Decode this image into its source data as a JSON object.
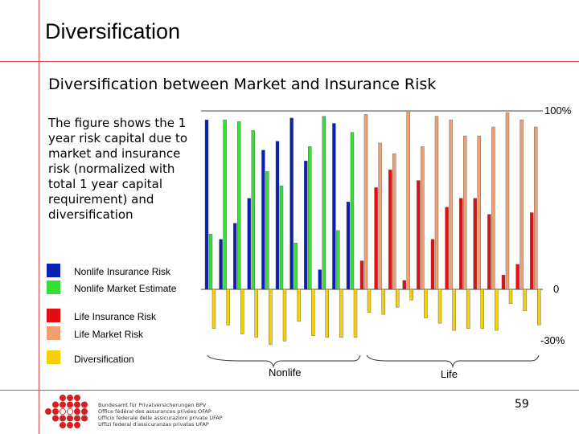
{
  "slide": {
    "title": "Diversification",
    "subtitle": "Diversification between Market and Insurance Risk",
    "description": "The figure shows the 1 year risk capital due to market and insurance risk (normalized with total 1 year capital requirement) and diversification",
    "page_number": "59"
  },
  "legend": [
    {
      "label": "Nonlife Insurance Risk",
      "color": "#0a1fb4"
    },
    {
      "label": "Nonlife Market Estimate",
      "color": "#33e033"
    },
    {
      "label": "Life Insurance Risk",
      "color": "#e01010"
    },
    {
      "label": "Life Market Risk",
      "color": "#f0a070"
    },
    {
      "label": "Diversification",
      "color": "#f5d000"
    }
  ],
  "axis": {
    "top_label": "100%",
    "zero_label": "0",
    "bottom_label": "-30%",
    "group_nonlife": "Nonlife",
    "group_life": "Life"
  },
  "logo": {
    "lines": [
      "Bundesamt für Privatversicherungen BPV",
      "Office fédéral des assurances privées OFAP",
      "Ufficio federale delle assicurazioni private UFAP",
      "Uffizi federal d'assicuranzas privatas UFAP"
    ]
  },
  "chart_data": {
    "type": "bar",
    "ylim": [
      -30,
      100
    ],
    "groups": [
      {
        "name": "Nonlife",
        "companies": [
          {
            "bars": [
              {
                "series": "Nonlife Insurance Risk",
                "value": 95
              },
              {
                "series": "Nonlife Market Estimate",
                "value": 31
              }
            ],
            "div": -22
          },
          {
            "bars": [
              {
                "series": "Nonlife Insurance Risk",
                "value": 28
              },
              {
                "series": "Nonlife Market Estimate",
                "value": 95
              }
            ],
            "div": -20
          },
          {
            "bars": [
              {
                "series": "Nonlife Insurance Risk",
                "value": 37
              },
              {
                "series": "Nonlife Market Estimate",
                "value": 94
              }
            ],
            "div": -25
          },
          {
            "bars": [
              {
                "series": "Nonlife Insurance Risk",
                "value": 51
              },
              {
                "series": "Nonlife Market Estimate",
                "value": 89
              }
            ],
            "div": -27
          },
          {
            "bars": [
              {
                "series": "Nonlife Insurance Risk",
                "value": 78
              },
              {
                "series": "Nonlife Market Estimate",
                "value": 66
              }
            ],
            "div": -31
          },
          {
            "bars": [
              {
                "series": "Nonlife Insurance Risk",
                "value": 83
              },
              {
                "series": "Nonlife Market Estimate",
                "value": 58
              }
            ],
            "div": -29
          },
          {
            "bars": [
              {
                "series": "Nonlife Insurance Risk",
                "value": 96
              },
              {
                "series": "Nonlife Market Estimate",
                "value": 26
              }
            ],
            "div": -18
          },
          {
            "bars": [
              {
                "series": "Nonlife Insurance Risk",
                "value": 72
              },
              {
                "series": "Nonlife Market Estimate",
                "value": 80
              }
            ],
            "div": -26
          },
          {
            "bars": [
              {
                "series": "Nonlife Insurance Risk",
                "value": 11
              },
              {
                "series": "Nonlife Market Estimate",
                "value": 97
              }
            ],
            "div": -27
          },
          {
            "bars": [
              {
                "series": "Nonlife Insurance Risk",
                "value": 93
              },
              {
                "series": "Nonlife Market Estimate",
                "value": 33
              }
            ],
            "div": -27
          },
          {
            "bars": [
              {
                "series": "Nonlife Insurance Risk",
                "value": 49
              },
              {
                "series": "Nonlife Market Estimate",
                "value": 88
              }
            ],
            "div": -27
          }
        ]
      },
      {
        "name": "Life",
        "companies": [
          {
            "bars": [
              {
                "series": "Life Insurance Risk",
                "value": 16
              },
              {
                "series": "Life Market Risk",
                "value": 98
              }
            ],
            "div": -13
          },
          {
            "bars": [
              {
                "series": "Life Insurance Risk",
                "value": 57
              },
              {
                "series": "Life Market Risk",
                "value": 82
              }
            ],
            "div": -14
          },
          {
            "bars": [
              {
                "series": "Life Insurance Risk",
                "value": 67
              },
              {
                "series": "Life Market Risk",
                "value": 76
              }
            ],
            "div": -10
          },
          {
            "bars": [
              {
                "series": "Life Insurance Risk",
                "value": 5
              },
              {
                "series": "Life Market Risk",
                "value": 100
              }
            ],
            "div": -6
          },
          {
            "bars": [
              {
                "series": "Life Insurance Risk",
                "value": 61
              },
              {
                "series": "Life Market Risk",
                "value": 80
              }
            ],
            "div": -16
          },
          {
            "bars": [
              {
                "series": "Life Insurance Risk",
                "value": 28
              },
              {
                "series": "Life Market Risk",
                "value": 97
              }
            ],
            "div": -19
          },
          {
            "bars": [
              {
                "series": "Life Insurance Risk",
                "value": 46
              },
              {
                "series": "Life Market Risk",
                "value": 95
              }
            ],
            "div": -23
          },
          {
            "bars": [
              {
                "series": "Life Insurance Risk",
                "value": 51
              },
              {
                "series": "Life Market Risk",
                "value": 86
              }
            ],
            "div": -22
          },
          {
            "bars": [
              {
                "series": "Life Insurance Risk",
                "value": 51
              },
              {
                "series": "Life Market Risk",
                "value": 86
              }
            ],
            "div": -22
          },
          {
            "bars": [
              {
                "series": "Life Insurance Risk",
                "value": 42
              },
              {
                "series": "Life Market Risk",
                "value": 91
              }
            ],
            "div": -23
          },
          {
            "bars": [
              {
                "series": "Life Insurance Risk",
                "value": 8
              },
              {
                "series": "Life Market Risk",
                "value": 99
              }
            ],
            "div": -8
          },
          {
            "bars": [
              {
                "series": "Life Insurance Risk",
                "value": 14
              },
              {
                "series": "Life Market Risk",
                "value": 95
              }
            ],
            "div": -12
          },
          {
            "bars": [
              {
                "series": "Life Insurance Risk",
                "value": 43
              },
              {
                "series": "Life Market Risk",
                "value": 91
              }
            ],
            "div": -20
          }
        ]
      }
    ]
  }
}
